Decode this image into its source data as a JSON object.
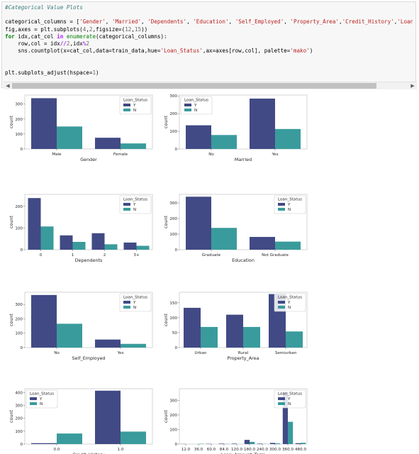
{
  "notebook": {
    "code_lines": [
      [
        {
          "t": "#Categorical Value Plots",
          "c": "cm"
        }
      ],
      [
        {
          "t": ""
        }
      ],
      [
        {
          "t": "categorical_columns = ["
        },
        {
          "t": "'Gender'",
          "c": "st"
        },
        {
          "t": ", "
        },
        {
          "t": "'Married'",
          "c": "st"
        },
        {
          "t": ", "
        },
        {
          "t": "'Dependents'",
          "c": "st"
        },
        {
          "t": ", "
        },
        {
          "t": "'Education'",
          "c": "st"
        },
        {
          "t": ", "
        },
        {
          "t": "'Self_Employed'",
          "c": "st"
        },
        {
          "t": ", "
        },
        {
          "t": "'Property_Area'",
          "c": "st"
        },
        {
          "t": ","
        },
        {
          "t": "'Credit_History'",
          "c": "st"
        },
        {
          "t": ","
        },
        {
          "t": "'Loan_Am",
          "c": "st"
        }
      ],
      [
        {
          "t": "fig,axes = plt.subplots("
        },
        {
          "t": "4",
          "c": "nu"
        },
        {
          "t": ","
        },
        {
          "t": "2",
          "c": "nu"
        },
        {
          "t": ",figsize=("
        },
        {
          "t": "12",
          "c": "nu"
        },
        {
          "t": ","
        },
        {
          "t": "15",
          "c": "nu"
        },
        {
          "t": "))"
        }
      ],
      [
        {
          "t": "for",
          "c": "kw"
        },
        {
          "t": " idx,cat_col "
        },
        {
          "t": "in",
          "c": "op"
        },
        {
          "t": " "
        },
        {
          "t": "enumerate",
          "c": "nb"
        },
        {
          "t": "(categorical_columns):"
        }
      ],
      [
        {
          "t": "    row,col = idx"
        },
        {
          "t": "//",
          "c": "op"
        },
        {
          "t": "2",
          "c": "nu"
        },
        {
          "t": ",idx"
        },
        {
          "t": "%",
          "c": "op"
        },
        {
          "t": "2",
          "c": "nu"
        }
      ],
      [
        {
          "t": "    sns.countplot(x=cat_col,data=train_data,hue="
        },
        {
          "t": "'Loan_Status'",
          "c": "st"
        },
        {
          "t": ",ax=axes[row,col], palette="
        },
        {
          "t": "'mako'",
          "c": "st"
        },
        {
          "t": ")"
        }
      ],
      [
        {
          "t": ""
        }
      ],
      [
        {
          "t": ""
        }
      ],
      [
        {
          "t": "plt.subplots_adjust(hspace="
        },
        {
          "t": "1",
          "c": "nu"
        },
        {
          "t": ")"
        }
      ]
    ],
    "scroll_left_arrow": "◀",
    "scroll_right_arrow": "▶"
  },
  "colors": {
    "Y": "#414a85",
    "N": "#3a9b9c"
  },
  "charts_common": {
    "ylabel": "count",
    "legend_title": "Loan_Status",
    "legend_labels": [
      "Y",
      "N"
    ]
  },
  "chart_data": [
    {
      "type": "bar",
      "xlabel": "Gender",
      "categories": [
        "Male",
        "Female"
      ],
      "series": [
        {
          "name": "Y",
          "values": [
            339,
            75
          ]
        },
        {
          "name": "N",
          "values": [
            150,
            37
          ]
        }
      ],
      "ylim": [
        0,
        360
      ],
      "yticks": [
        0,
        100,
        200,
        300
      ],
      "legend": "top-right"
    },
    {
      "type": "bar",
      "xlabel": "Married",
      "categories": [
        "No",
        "Yes"
      ],
      "series": [
        {
          "name": "Y",
          "values": [
            134,
            285
          ]
        },
        {
          "name": "N",
          "values": [
            79,
            113
          ]
        }
      ],
      "ylim": [
        0,
        305
      ],
      "yticks": [
        0,
        100,
        200,
        300
      ],
      "legend": "top-left"
    },
    {
      "type": "bar",
      "xlabel": "Dependents",
      "categories": [
        "0",
        "1",
        "2",
        "3+"
      ],
      "series": [
        {
          "name": "Y",
          "values": [
            238,
            66,
            76,
            33
          ]
        },
        {
          "name": "N",
          "values": [
            107,
            36,
            25,
            18
          ]
        }
      ],
      "ylim": [
        0,
        255
      ],
      "yticks": [
        0,
        100,
        200
      ],
      "legend": "top-right"
    },
    {
      "type": "bar",
      "xlabel": "Education",
      "categories": [
        "Graduate",
        "Not Graduate"
      ],
      "series": [
        {
          "name": "Y",
          "values": [
            340,
            82
          ]
        },
        {
          "name": "N",
          "values": [
            140,
            52
          ]
        }
      ],
      "ylim": [
        0,
        355
      ],
      "yticks": [
        0,
        100,
        200,
        300
      ],
      "legend": "top-right"
    },
    {
      "type": "bar",
      "xlabel": "Self_Employed",
      "categories": [
        "No",
        "Yes"
      ],
      "series": [
        {
          "name": "Y",
          "values": [
            366,
            56
          ]
        },
        {
          "name": "N",
          "values": [
            166,
            26
          ]
        }
      ],
      "ylim": [
        0,
        385
      ],
      "yticks": [
        0,
        100,
        200,
        300
      ],
      "legend": "top-right"
    },
    {
      "type": "bar",
      "xlabel": "Property_Area",
      "categories": [
        "Urban",
        "Rural",
        "Semiurban"
      ],
      "series": [
        {
          "name": "Y",
          "values": [
            133,
            110,
            179
          ]
        },
        {
          "name": "N",
          "values": [
            69,
            69,
            54
          ]
        }
      ],
      "ylim": [
        0,
        185
      ],
      "yticks": [
        0,
        50,
        100,
        150
      ],
      "legend": "top-right"
    },
    {
      "type": "bar",
      "xlabel": "Credit_History",
      "categories": [
        "0.0",
        "1.0"
      ],
      "series": [
        {
          "name": "Y",
          "values": [
            7,
            415
          ]
        },
        {
          "name": "N",
          "values": [
            82,
            97
          ]
        }
      ],
      "ylim": [
        0,
        430
      ],
      "yticks": [
        0,
        100,
        200,
        300,
        400
      ],
      "legend": "top-left"
    },
    {
      "type": "bar",
      "xlabel": "Loan_Amount_Term",
      "categories": [
        "12.0",
        "36.0",
        "60.0",
        "84.0",
        "120.0",
        "180.0",
        "240.0",
        "300.0",
        "360.0",
        "480.0"
      ],
      "series": [
        {
          "name": "Y",
          "values": [
            1,
            0,
            2,
            3,
            3,
            29,
            3,
            8,
            359,
            6
          ]
        },
        {
          "name": "N",
          "values": [
            0,
            2,
            0,
            1,
            0,
            15,
            1,
            5,
            153,
            9
          ]
        }
      ],
      "ylim": [
        0,
        380
      ],
      "yticks": [
        0,
        100,
        200,
        300
      ],
      "legend": "top-right"
    }
  ]
}
